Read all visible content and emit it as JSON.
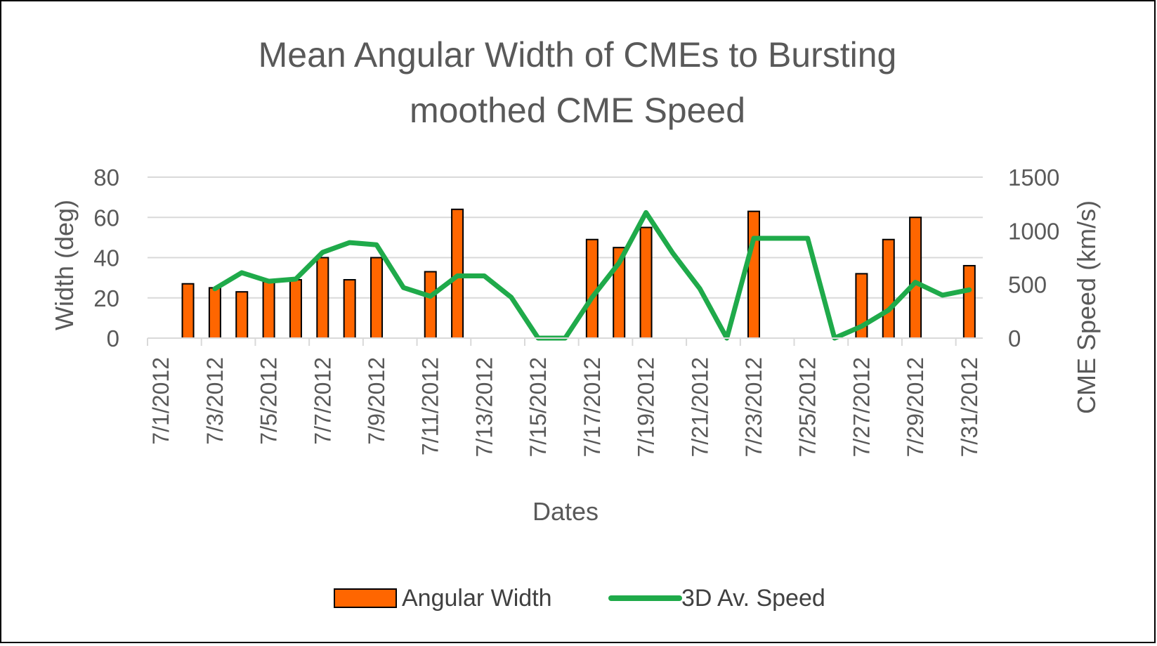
{
  "chart_data": {
    "type": "bar",
    "title_lines": [
      "Mean Angular Width of CMEs to Bursting",
      "moothed CME Speed"
    ],
    "xlabel": "Dates",
    "ylabel_left": "Width (deg)",
    "ylabel_right": "CME Speed (km/s)",
    "ylim_left": [
      0,
      80
    ],
    "ylim_right": [
      0,
      1500
    ],
    "yticks_left": [
      "0",
      "20",
      "40",
      "60",
      "80"
    ],
    "yticks_right": [
      "0",
      "500",
      "1000",
      "1500"
    ],
    "grid": true,
    "legend_position": "bottom",
    "x_labels": [
      "7/1/2012",
      "7/3/2012",
      "7/5/2012",
      "7/7/2012",
      "7/9/2012",
      "7/11/2012",
      "7/13/2012",
      "7/15/2012",
      "7/17/2012",
      "7/19/2012",
      "7/21/2012",
      "7/23/2012",
      "7/25/2012",
      "7/27/2012",
      "7/29/2012",
      "7/31/2012"
    ],
    "dates": [
      "7/1/2012",
      "7/2/2012",
      "7/3/2012",
      "7/4/2012",
      "7/5/2012",
      "7/6/2012",
      "7/7/2012",
      "7/8/2012",
      "7/9/2012",
      "7/10/2012",
      "7/11/2012",
      "7/12/2012",
      "7/13/2012",
      "7/14/2012",
      "7/15/2012",
      "7/16/2012",
      "7/17/2012",
      "7/18/2012",
      "7/19/2012",
      "7/20/2012",
      "7/21/2012",
      "7/22/2012",
      "7/23/2012",
      "7/24/2012",
      "7/25/2012",
      "7/26/2012",
      "7/27/2012",
      "7/28/2012",
      "7/29/2012",
      "7/30/2012",
      "7/31/2012"
    ],
    "series": [
      {
        "name": "Angular Width",
        "type": "bar",
        "axis": "left",
        "color": "#FF6600",
        "values": [
          null,
          27,
          25,
          23,
          28,
          29,
          40,
          29,
          40,
          null,
          33,
          64,
          null,
          null,
          null,
          null,
          49,
          45,
          55,
          null,
          null,
          null,
          63,
          null,
          null,
          null,
          32,
          49,
          60,
          null,
          36
        ]
      },
      {
        "name": "3D Av. Speed",
        "type": "line",
        "axis": "right",
        "color": "#1FAA4A",
        "values": [
          null,
          null,
          460,
          610,
          530,
          550,
          800,
          890,
          870,
          470,
          390,
          580,
          580,
          380,
          0,
          0,
          380,
          700,
          1170,
          790,
          460,
          0,
          930,
          930,
          930,
          0,
          110,
          260,
          520,
          400,
          450
        ]
      }
    ]
  }
}
